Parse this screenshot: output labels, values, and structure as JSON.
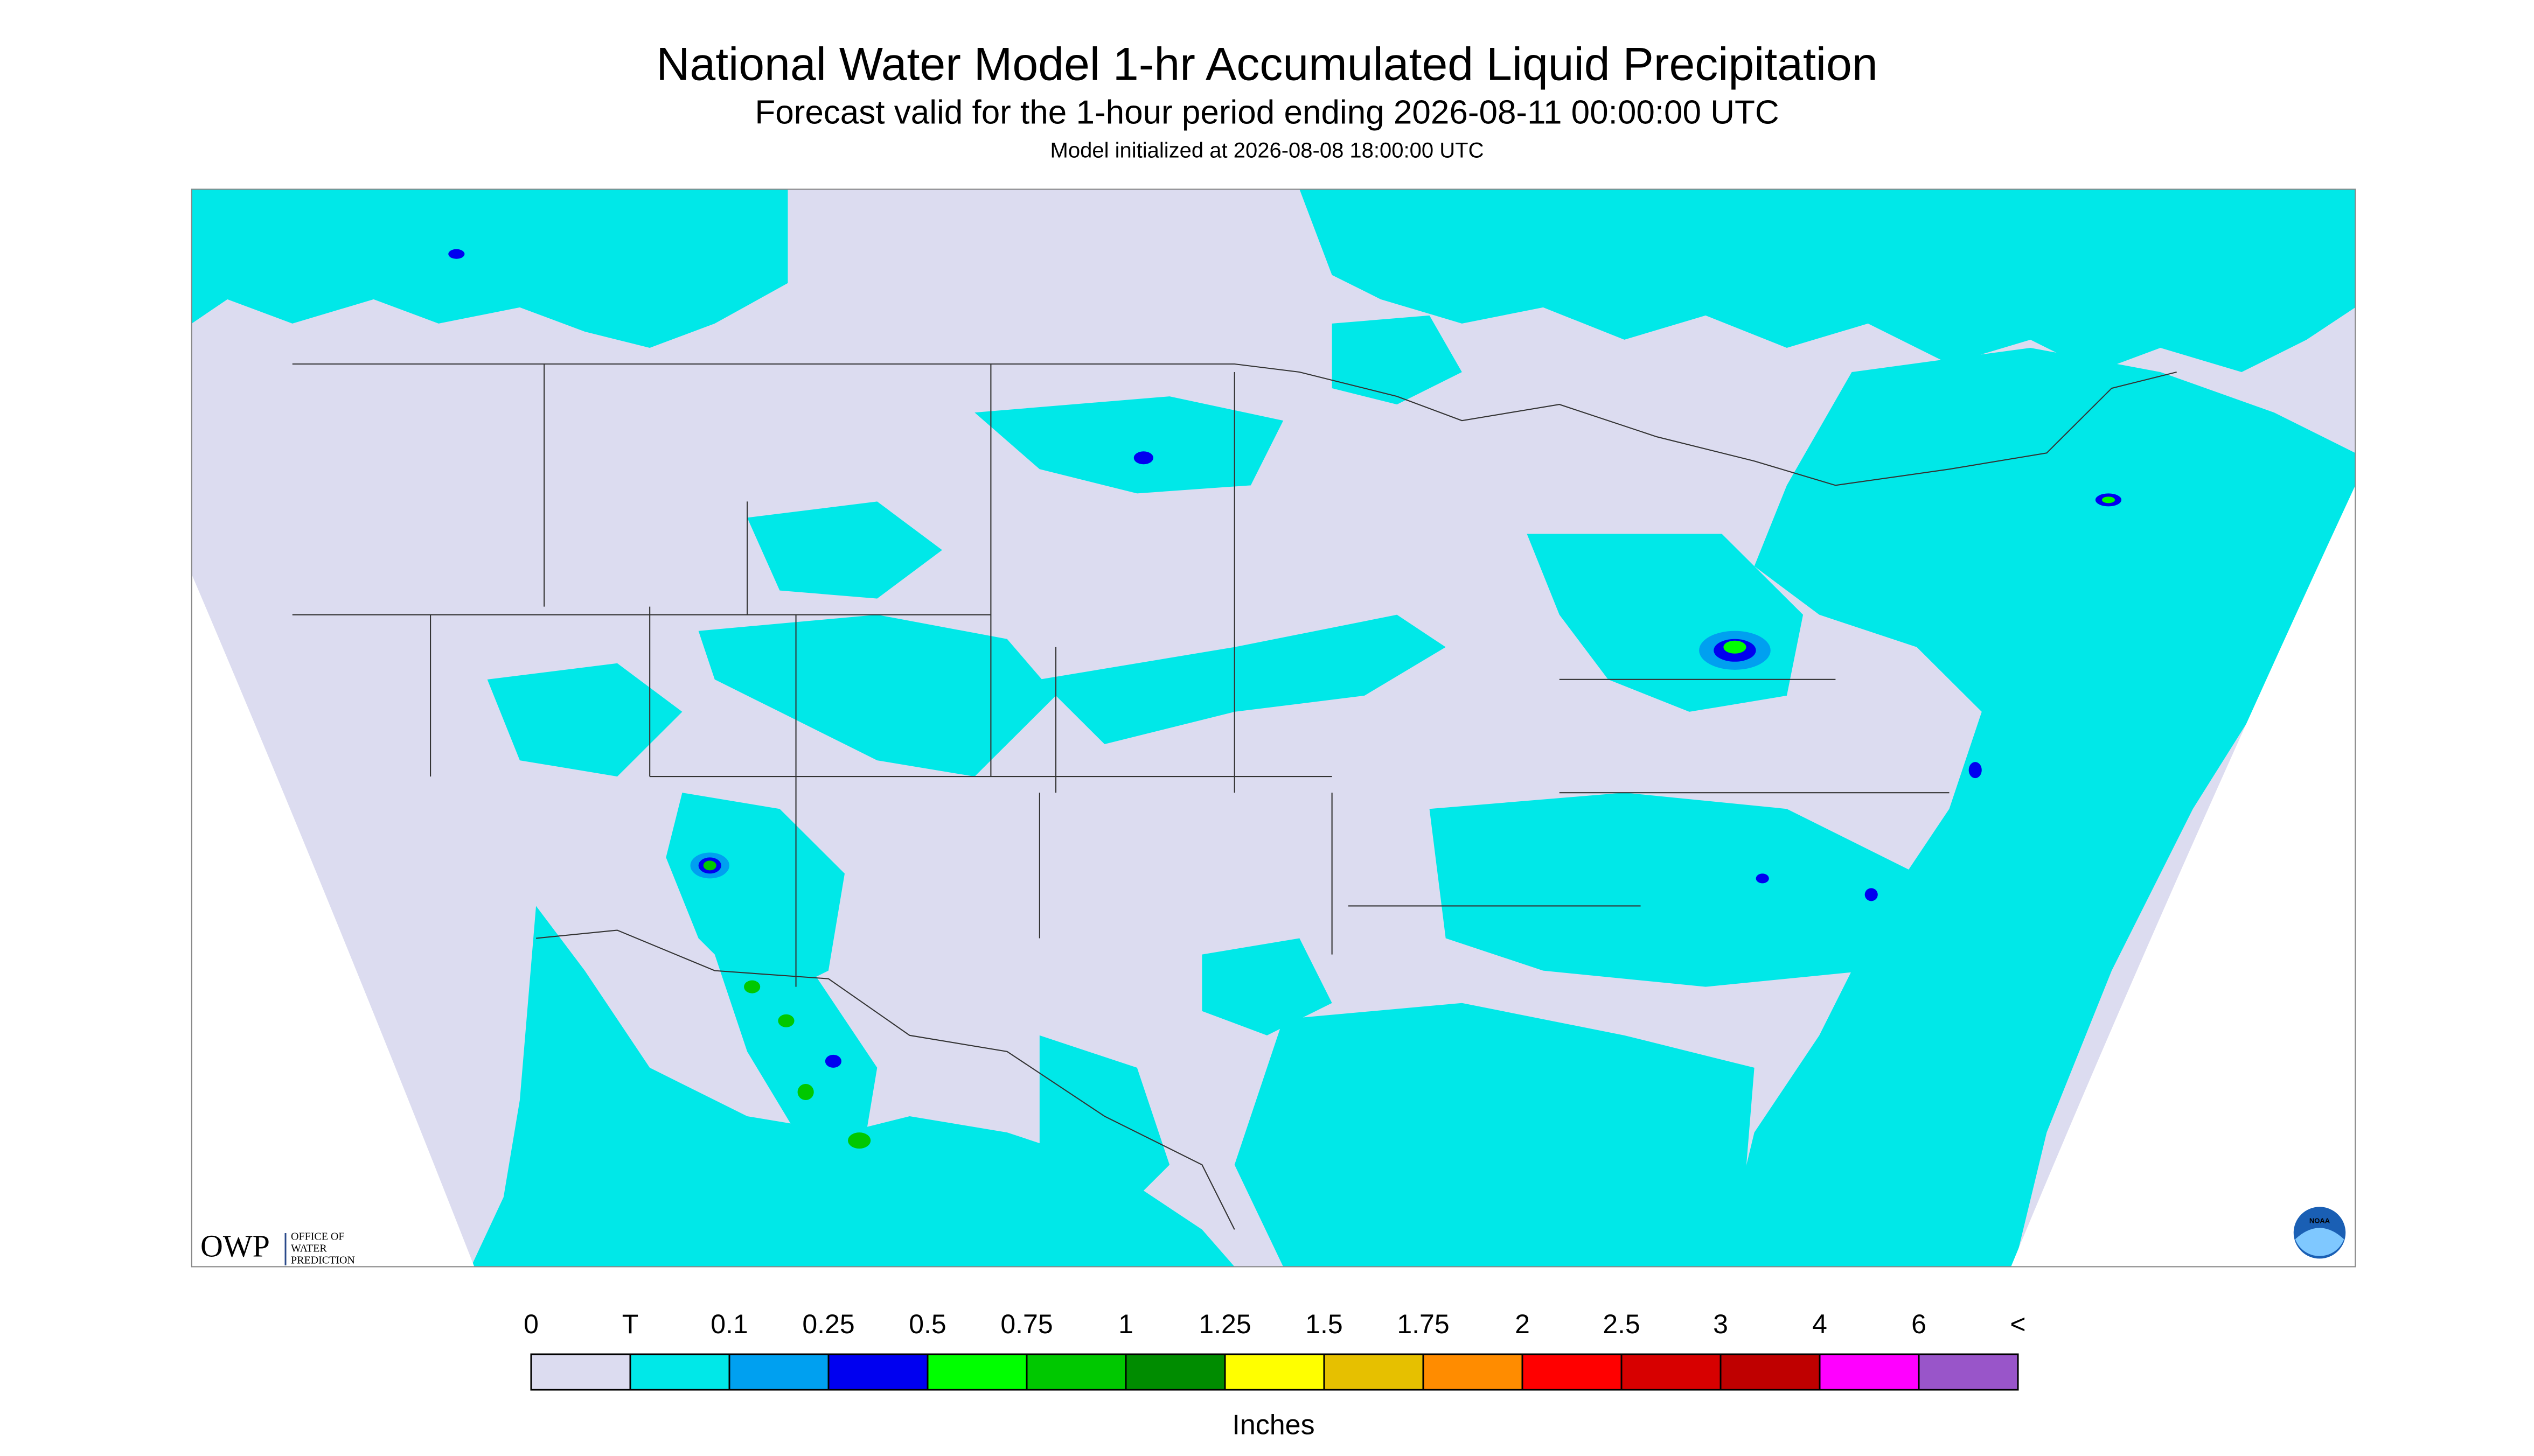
{
  "header": {
    "title": "National Water Model 1-hr Accumulated Liquid Precipitation",
    "subtitle": "Forecast valid for the 1-hour period ending 2026-08-11 00:00:00 UTC",
    "init": "Model initialized at 2026-08-08 18:00:00 UTC"
  },
  "legend": {
    "labels": [
      "0",
      "T",
      "0.1",
      "0.25",
      "0.5",
      "0.75",
      "1",
      "1.25",
      "1.5",
      "1.75",
      "2",
      "2.5",
      "3",
      "4",
      "6",
      "<"
    ],
    "colors": [
      "#dcdcf0",
      "#00e8e8",
      "#00a0f0",
      "#0000f0",
      "#00ff00",
      "#00c800",
      "#008c00",
      "#ffff00",
      "#e6c000",
      "#ff8c00",
      "#ff0000",
      "#d70000",
      "#bf0000",
      "#ff00ff",
      "#9955c9"
    ],
    "unit": "Inches"
  },
  "logos": {
    "owp": "OWP",
    "owp_lines": [
      "OFFICE OF",
      "WATER",
      "PREDICTION"
    ],
    "noaa": "NOAA"
  }
}
